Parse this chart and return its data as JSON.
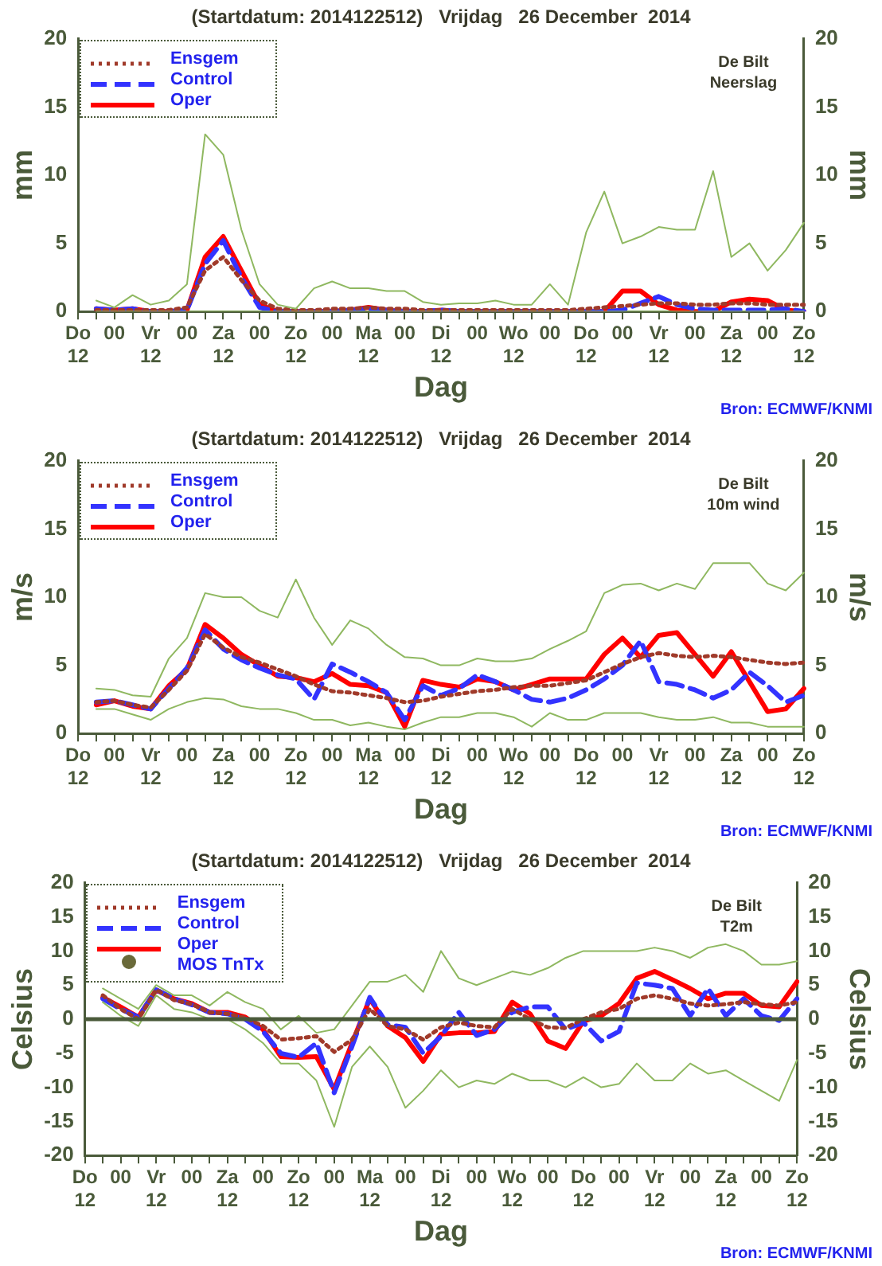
{
  "chart_data": [
    {
      "type": "line",
      "title": "(Startdatum: 2014122512)   Vrijdag   26 December  2014",
      "xlabel": "Dag",
      "ylabel": "mm",
      "y2label": "mm",
      "annotations": [
        "De Bilt",
        "Neerslag",
        "Bron: ECMWF/KNMI"
      ],
      "legend": "top left",
      "categories": [
        "Do\n12",
        null,
        "00",
        null,
        "Vr\n12",
        null,
        "00",
        null,
        "Za\n12",
        null,
        "00",
        null,
        "Zo\n12",
        null,
        "00",
        null,
        "Ma\n12",
        null,
        "00",
        null,
        "Di\n12",
        null,
        "00",
        null,
        "Wo\n12",
        null,
        "00",
        null,
        "Do\n12",
        null,
        "00",
        null,
        "Vr\n12",
        null,
        "00",
        null,
        "Za\n12",
        null,
        "00",
        null,
        "Zo\n12"
      ],
      "ylim": [
        0,
        20
      ],
      "yticks": [
        0,
        5,
        10,
        15,
        20
      ],
      "y2lim": [
        0,
        20
      ],
      "y2ticks": [
        0,
        5,
        10,
        15,
        20
      ],
      "series": [
        {
          "color": "#8fb860",
          "line_style": "solid",
          "values": [
            null,
            0.8,
            0.3,
            1.2,
            0.5,
            0.8,
            2,
            13,
            11.5,
            6,
            2,
            0.5,
            0.2,
            1.7,
            2.2,
            1.7,
            1.7,
            1.5,
            1.5,
            0.7,
            0.5,
            0.6,
            0.6,
            0.8,
            0.5,
            0.5,
            2,
            0.5,
            5.8,
            8.8,
            5,
            5.5,
            6.2,
            6,
            6,
            10.3,
            4,
            5,
            3,
            4.5,
            6.5
          ]
        },
        {
          "color": "#8fb860",
          "line_style": "solid",
          "values": [
            null,
            0,
            0,
            0,
            0,
            0,
            0,
            0,
            0,
            0,
            0,
            0,
            0,
            0,
            0,
            0,
            0,
            0,
            0,
            0,
            0,
            0,
            0,
            0,
            0,
            0,
            0,
            0,
            0,
            0,
            0,
            0,
            0,
            0,
            0,
            0,
            0,
            0,
            0,
            0,
            0
          ]
        },
        {
          "name": "Ensgem",
          "color": "#a03a2a",
          "line_style": "dotted",
          "values": [
            null,
            0.1,
            0.1,
            0.1,
            0.1,
            0.1,
            0.3,
            3,
            4,
            2.3,
            0.8,
            0.2,
            0.1,
            0.1,
            0.2,
            0.2,
            0.3,
            0.2,
            0.2,
            0.1,
            0.1,
            0.1,
            0.1,
            0.1,
            0.1,
            0.1,
            0.1,
            0.1,
            0.2,
            0.3,
            0.4,
            0.5,
            0.6,
            0.6,
            0.5,
            0.5,
            0.6,
            0.6,
            0.5,
            0.5,
            0.5
          ]
        },
        {
          "name": "Control",
          "color": "#3333ff",
          "line_style": "dashed",
          "values": [
            null,
            0.2,
            0.1,
            0.2,
            0,
            0,
            0.1,
            3.5,
            5.2,
            2.5,
            0.3,
            0,
            0,
            0,
            0,
            0.1,
            0.2,
            0.1,
            0,
            0,
            0.1,
            0,
            0,
            0,
            0,
            0,
            0,
            0,
            0,
            0,
            0.1,
            0.6,
            1.1,
            0.5,
            0.2,
            0.1,
            0.1,
            0.1,
            0.1,
            0.2,
            0
          ]
        },
        {
          "name": "Oper",
          "color": "#ff0000",
          "line_style": "solid",
          "values": [
            null,
            0.2,
            0.1,
            0.2,
            0,
            0,
            0.1,
            4,
            5.5,
            3,
            0.5,
            0,
            0,
            0,
            0,
            0.1,
            0.3,
            0.1,
            0,
            0,
            0.1,
            0,
            0,
            0,
            0,
            0,
            0,
            0,
            0,
            0,
            1.5,
            1.5,
            0.5,
            0.1,
            0,
            0,
            0.7,
            0.9,
            0.8,
            0.1,
            0
          ]
        }
      ]
    },
    {
      "type": "line",
      "title": "(Startdatum: 2014122512)   Vrijdag   26 December  2014",
      "xlabel": "Dag",
      "ylabel": "m/s",
      "y2label": "m/s",
      "annotations": [
        "De Bilt",
        "10m wind",
        "Bron: ECMWF/KNMI"
      ],
      "legend": "top left",
      "categories": [
        "Do\n12",
        null,
        "00",
        null,
        "Vr\n12",
        null,
        "00",
        null,
        "Za\n12",
        null,
        "00",
        null,
        "Zo\n12",
        null,
        "00",
        null,
        "Ma\n12",
        null,
        "00",
        null,
        "Di\n12",
        null,
        "00",
        null,
        "Wo\n12",
        null,
        "00",
        null,
        "Do\n12",
        null,
        "00",
        null,
        "Vr\n12",
        null,
        "00",
        null,
        "Za\n12",
        null,
        "00",
        null,
        "Zo\n12"
      ],
      "ylim": [
        0,
        20
      ],
      "yticks": [
        0,
        5,
        10,
        15,
        20
      ],
      "y2lim": [
        0,
        20
      ],
      "y2ticks": [
        0,
        5,
        10,
        15,
        20
      ],
      "series": [
        {
          "color": "#8fb860",
          "line_style": "solid",
          "values": [
            null,
            3.3,
            3.2,
            2.8,
            2.7,
            5.5,
            7,
            10.3,
            10,
            10,
            9,
            8.5,
            11.3,
            8.5,
            6.5,
            8.3,
            7.7,
            6.5,
            5.6,
            5.5,
            5,
            5,
            5.5,
            5.3,
            5.3,
            5.5,
            6.2,
            6.8,
            7.5,
            10.3,
            10.9,
            11,
            10.5,
            11,
            10.6,
            12.5,
            12.5,
            12.5,
            11,
            10.5,
            11.8
          ]
        },
        {
          "color": "#8fb860",
          "line_style": "solid",
          "values": [
            null,
            1.8,
            1.8,
            1.4,
            1,
            1.8,
            2.3,
            2.6,
            2.5,
            2,
            1.8,
            1.8,
            1.5,
            1,
            1,
            0.6,
            0.8,
            0.5,
            0.3,
            0.8,
            1.2,
            1.2,
            1.5,
            1.5,
            1.2,
            0.5,
            1.5,
            1,
            1,
            1.5,
            1.5,
            1.5,
            1.2,
            1,
            1,
            1.2,
            0.8,
            0.8,
            0.5,
            0.5,
            0.5
          ]
        },
        {
          "name": "Ensgem",
          "color": "#a03a2a",
          "line_style": "dotted",
          "values": [
            null,
            2.3,
            2.4,
            2.1,
            1.9,
            3.2,
            4.6,
            7.3,
            6.3,
            5.6,
            5.2,
            4.7,
            4.2,
            3.6,
            3.1,
            3,
            2.8,
            2.6,
            2.3,
            2.4,
            2.7,
            2.9,
            3.1,
            3.2,
            3.4,
            3.5,
            3.5,
            3.7,
            3.9,
            4.5,
            5.1,
            5.6,
            5.9,
            5.7,
            5.6,
            5.7,
            5.6,
            5.4,
            5.2,
            5.1,
            5.2
          ]
        },
        {
          "name": "Control",
          "color": "#3333ff",
          "line_style": "dashed",
          "values": [
            null,
            2.3,
            2.4,
            2.1,
            1.8,
            3.3,
            4.8,
            7.6,
            6.2,
            5.4,
            4.8,
            4.3,
            4,
            2.5,
            5.1,
            4.5,
            3.8,
            3,
            1,
            3.5,
            2.8,
            3.3,
            4.3,
            3.8,
            3.2,
            2.5,
            2.3,
            2.6,
            3.2,
            4,
            5,
            6.8,
            3.8,
            3.6,
            3.2,
            2.6,
            3.2,
            4.5,
            3.5,
            2.3,
            2.8
          ]
        },
        {
          "name": "Oper",
          "color": "#ff0000",
          "line_style": "solid",
          "values": [
            null,
            2.1,
            2.4,
            2,
            1.8,
            3.5,
            4.7,
            8,
            7,
            5.8,
            5,
            4.2,
            4.1,
            3.8,
            4.4,
            3.6,
            3.5,
            3,
            0.5,
            3.9,
            3.6,
            3.4,
            4,
            3.8,
            3.2,
            3.6,
            4,
            4,
            4,
            5.8,
            7,
            5.6,
            7.2,
            7.4,
            5.8,
            4.2,
            6,
            3.8,
            1.6,
            1.8,
            3.3
          ]
        }
      ]
    },
    {
      "type": "line",
      "title": "(Startdatum: 2014122512)   Vrijdag   26 December  2014",
      "xlabel": "Dag",
      "ylabel": "Celsius",
      "y2label": "Celsius",
      "annotations": [
        "De Bilt",
        "T2m",
        "Bron: ECMWF/KNMI"
      ],
      "legend": "top left",
      "categories": [
        "Do\n12",
        null,
        "00",
        null,
        "Vr\n12",
        null,
        "00",
        null,
        "Za\n12",
        null,
        "00",
        null,
        "Zo\n12",
        null,
        "00",
        null,
        "Ma\n12",
        null,
        "00",
        null,
        "Di\n12",
        null,
        "00",
        null,
        "Wo\n12",
        null,
        "00",
        null,
        "Do\n12",
        null,
        "00",
        null,
        "Vr\n12",
        null,
        "00",
        null,
        "Za\n12",
        null,
        "00",
        null,
        "Zo\n12"
      ],
      "ylim": [
        -20,
        20
      ],
      "yticks": [
        -20,
        -15,
        -10,
        -5,
        0,
        5,
        10,
        15,
        20
      ],
      "y2lim": [
        -20,
        20
      ],
      "y2ticks": [
        -20,
        -15,
        -10,
        -5,
        0,
        5,
        10,
        15,
        20
      ],
      "ref_lines": [
        {
          "axis": "y",
          "value": 0,
          "color": "#4a5a3a"
        }
      ],
      "series": [
        {
          "color": "#8fb860",
          "line_style": "solid",
          "values": [
            null,
            4.5,
            3,
            1.5,
            5,
            3.5,
            3.5,
            2,
            4,
            2.5,
            1.5,
            -1.5,
            0.5,
            -2,
            -1.5,
            2,
            5.5,
            5.5,
            6.5,
            4,
            10,
            6,
            5,
            6,
            7,
            6.5,
            7.5,
            9,
            10,
            10,
            10,
            10,
            10.5,
            10,
            9,
            10.5,
            11,
            10,
            8,
            8,
            8.5
          ]
        },
        {
          "color": "#8fb860",
          "line_style": "solid",
          "values": [
            null,
            2.5,
            0.5,
            -1,
            3.5,
            1.5,
            1,
            0,
            0,
            -1.5,
            -3.5,
            -6.5,
            -6.5,
            -9,
            -15.8,
            -7,
            -4,
            -7,
            -13,
            -10.5,
            -7.5,
            -10,
            -9,
            -9.5,
            -8,
            -9,
            -9,
            -10,
            -8.5,
            -10,
            -9.5,
            -6.5,
            -9,
            -9,
            -6.5,
            -8,
            -7.5,
            -9,
            -10.5,
            -12,
            -6
          ]
        },
        {
          "name": "Ensgem",
          "color": "#a03a2a",
          "line_style": "dotted",
          "values": [
            null,
            3.5,
            1.5,
            0,
            4.3,
            2.8,
            2.2,
            1,
            0.8,
            0.2,
            -1,
            -3,
            -2.8,
            -2.5,
            -4.8,
            -3,
            1.5,
            -1,
            -1.5,
            -3,
            -1.2,
            -0.5,
            -1,
            -1.2,
            1.5,
            0,
            -1.2,
            -1.3,
            0,
            1,
            1.5,
            3,
            3.5,
            3,
            2.3,
            2,
            2.2,
            2.5,
            2.2,
            2,
            2.5
          ]
        },
        {
          "name": "Control",
          "color": "#3333ff",
          "line_style": "dashed",
          "values": [
            null,
            3,
            1.5,
            0.3,
            4.3,
            3,
            2.1,
            1,
            0.8,
            0,
            -1.8,
            -5,
            -5.6,
            -3.5,
            -10.8,
            -4,
            3.2,
            -0.8,
            -1.2,
            -5,
            -2.5,
            1,
            -2.4,
            -1.5,
            1,
            1.8,
            1.8,
            -1.5,
            -0.5,
            -3.2,
            -1.8,
            5.3,
            5,
            4.5,
            0.5,
            4.5,
            0.5,
            3,
            0.5,
            -0.2,
            3
          ]
        },
        {
          "name": "Oper",
          "color": "#ff0000",
          "line_style": "solid",
          "values": [
            null,
            3.2,
            1.8,
            0.3,
            4.3,
            3,
            2.3,
            1,
            1,
            0.3,
            -1.5,
            -5.5,
            -5.6,
            -5.5,
            -10.3,
            -3.5,
            3,
            -1,
            -2.7,
            -6.2,
            -2.2,
            -2,
            -2,
            -1.8,
            2.5,
            0.8,
            -3.2,
            -4.3,
            -0.3,
            0.5,
            2.3,
            6,
            7,
            5.8,
            4.5,
            3,
            3.8,
            3.8,
            2,
            1.8,
            5.5
          ]
        },
        {
          "type": "scatter",
          "name": "MOS TnTx",
          "color": "#6a6a3a",
          "marker": "circle",
          "values": [
            null,
            null,
            null,
            null,
            null,
            null,
            null,
            null,
            null,
            null,
            null,
            null,
            null,
            null,
            null,
            null,
            null,
            null,
            null,
            null,
            null,
            null,
            null,
            null,
            null,
            null,
            null,
            null,
            null,
            null,
            null,
            null,
            null,
            null,
            null,
            null,
            null,
            null,
            null,
            null,
            null
          ]
        }
      ]
    }
  ]
}
